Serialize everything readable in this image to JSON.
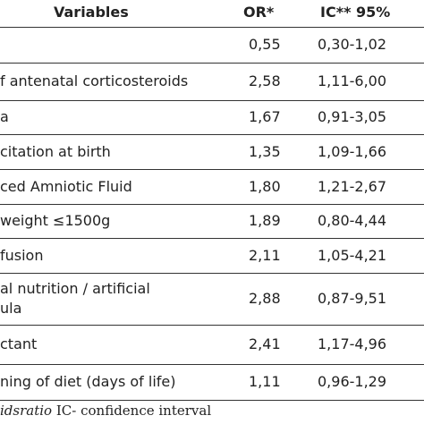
{
  "table": {
    "header": [
      "Variables",
      "OR*",
      "IC** 95%"
    ],
    "rows": [
      {
        "or": "0,55",
        "ic": "0,30-1,02"
      },
      {
        "label": [
          "f antenatal corticosteroids"
        ],
        "or": "2,58",
        "ic": "1,11-6,00"
      },
      {
        "label": [
          "a"
        ],
        "or": "1,67",
        "ic": "0,91-3,05"
      },
      {
        "label": [
          "citation at birth"
        ],
        "or": "1,35",
        "ic": "1,09-1,66"
      },
      {
        "label": [
          "ced Amniotic Fluid"
        ],
        "or": "1,80",
        "ic": "1,21-2,67"
      },
      {
        "label": [
          "weight ≤1500g"
        ],
        "or": "1,89",
        "ic": "0,80-4,44"
      },
      {
        "label": [
          "fusion"
        ],
        "or": "2,11",
        "ic": "1,05-4,21"
      },
      {
        "label": [
          "al nutrition / artificial",
          "ula"
        ],
        "or": "2,88",
        "ic": "0,87-9,51"
      },
      {
        "label": [
          "ctant"
        ],
        "or": "2,41",
        "ic": "1,17-4,96"
      },
      {
        "label": [
          "ning of diet (days of life)"
        ],
        "or": "1,11",
        "ic": "0,96-1,29"
      }
    ]
  },
  "footer": {
    "italic": "idsratio",
    "text": "IC- confidence interval"
  }
}
